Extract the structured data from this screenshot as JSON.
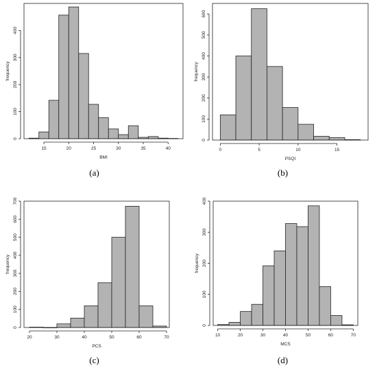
{
  "chart_data": [
    {
      "id": "a",
      "type": "histogram",
      "label": "(a)",
      "xlabel": "BMI",
      "ylabel": "frequency",
      "xlim": [
        11,
        43
      ],
      "ylim": [
        0,
        500
      ],
      "xticks": [
        15,
        20,
        25,
        30,
        35,
        40
      ],
      "yticks": [
        0,
        100,
        200,
        300,
        400
      ],
      "bins": [
        [
          12,
          14
        ],
        [
          14,
          16
        ],
        [
          16,
          18
        ],
        [
          18,
          20
        ],
        [
          20,
          22
        ],
        [
          22,
          24
        ],
        [
          24,
          26
        ],
        [
          26,
          28
        ],
        [
          28,
          30
        ],
        [
          30,
          32
        ],
        [
          32,
          34
        ],
        [
          34,
          36
        ],
        [
          36,
          38
        ],
        [
          38,
          40
        ],
        [
          40,
          42
        ]
      ],
      "values": [
        2,
        25,
        142,
        457,
        487,
        315,
        127,
        78,
        36,
        15,
        48,
        5,
        8,
        2,
        1
      ]
    },
    {
      "id": "b",
      "type": "histogram",
      "label": "(b)",
      "xlabel": "PSQI",
      "ylabel": "frequency",
      "xlim": [
        -1,
        19
      ],
      "ylim": [
        0,
        650
      ],
      "xticks": [
        0,
        5,
        10,
        15
      ],
      "yticks": [
        0,
        100,
        200,
        300,
        400,
        500,
        600
      ],
      "bins": [
        [
          0,
          2
        ],
        [
          2,
          4
        ],
        [
          4,
          6
        ],
        [
          6,
          8
        ],
        [
          8,
          10
        ],
        [
          10,
          12
        ],
        [
          12,
          14
        ],
        [
          14,
          16
        ],
        [
          16,
          18
        ]
      ],
      "values": [
        120,
        400,
        625,
        350,
        155,
        75,
        18,
        12,
        2
      ]
    },
    {
      "id": "c",
      "type": "histogram",
      "label": "(c)",
      "xlabel": "PCS",
      "ylabel": "frequency",
      "xlim": [
        18,
        71
      ],
      "ylim": [
        0,
        700
      ],
      "xticks": [
        20,
        30,
        40,
        50,
        60,
        70
      ],
      "yticks": [
        0,
        100,
        200,
        300,
        400,
        500,
        600,
        700
      ],
      "bins": [
        [
          20,
          25
        ],
        [
          25,
          30
        ],
        [
          30,
          35
        ],
        [
          35,
          40
        ],
        [
          40,
          45
        ],
        [
          45,
          50
        ],
        [
          50,
          55
        ],
        [
          55,
          60
        ],
        [
          60,
          65
        ],
        [
          65,
          70
        ]
      ],
      "values": [
        2,
        0,
        20,
        52,
        120,
        248,
        500,
        672,
        120,
        8
      ]
    },
    {
      "id": "d",
      "type": "histogram",
      "label": "(d)",
      "xlabel": "MCS",
      "ylabel": "frequency",
      "xlim": [
        8,
        72
      ],
      "ylim": [
        0,
        400
      ],
      "xticks": [
        10,
        20,
        30,
        40,
        50,
        60,
        70
      ],
      "yticks": [
        0,
        100,
        200,
        300,
        400
      ],
      "bins": [
        [
          10,
          15
        ],
        [
          15,
          20
        ],
        [
          20,
          25
        ],
        [
          25,
          30
        ],
        [
          30,
          35
        ],
        [
          35,
          40
        ],
        [
          40,
          45
        ],
        [
          45,
          50
        ],
        [
          50,
          55
        ],
        [
          55,
          60
        ],
        [
          60,
          65
        ],
        [
          65,
          70
        ]
      ],
      "values": [
        3,
        10,
        45,
        68,
        192,
        240,
        328,
        318,
        385,
        125,
        32,
        2
      ]
    }
  ]
}
